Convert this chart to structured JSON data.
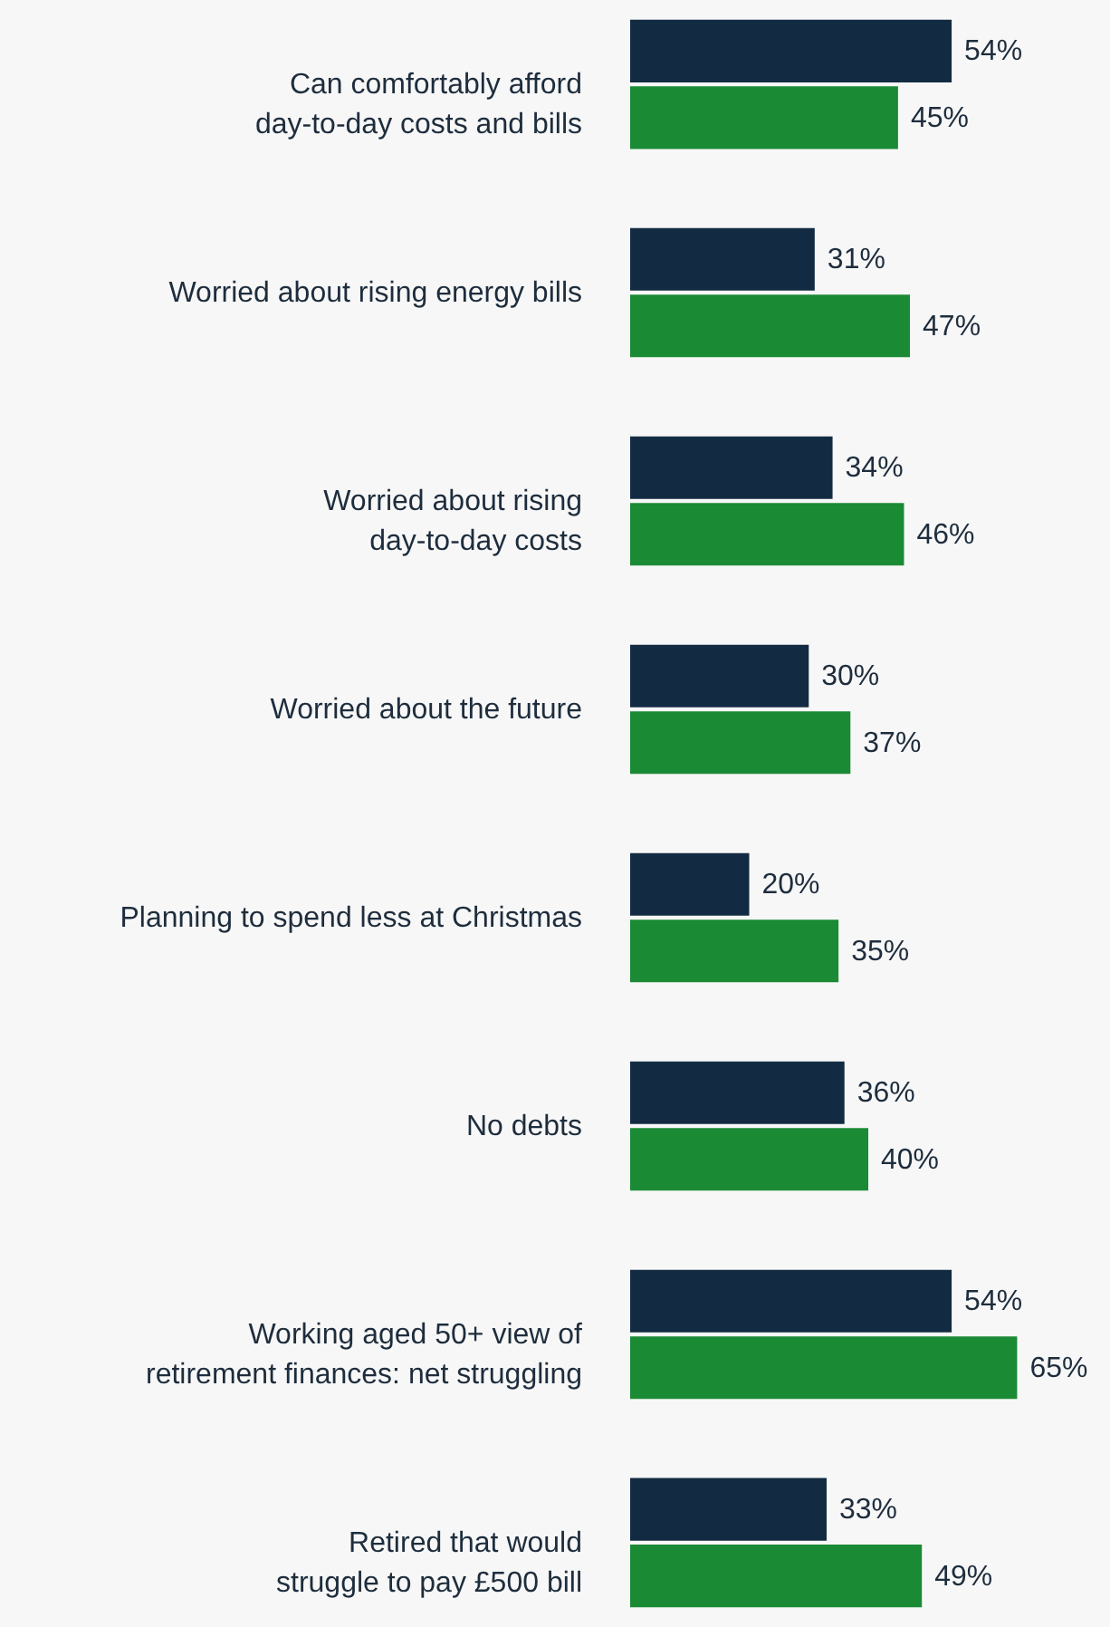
{
  "chart_data": {
    "type": "bar",
    "orientation": "horizontal",
    "grid": false,
    "categories": [
      "Can comfortably afford day-to-day costs and bills",
      "Worried about rising energy bills",
      "Worried about rising day-to-day costs",
      "Worried about the future",
      "Planning to spend less at Christmas",
      "No debts",
      "Working aged 50+ view of retirement finances: net struggling",
      "Retired that would struggle to pay £500 bill"
    ],
    "series": [
      {
        "color": "#132b42",
        "values": [
          54,
          31,
          34,
          30,
          20,
          36,
          54,
          33
        ],
        "value_labels": [
          "54%",
          "31%",
          "34%",
          "30%",
          "20%",
          "36%",
          "54%",
          "33%"
        ]
      },
      {
        "color": "#1b8a35",
        "values": [
          45,
          47,
          46,
          37,
          35,
          40,
          65,
          49
        ],
        "value_labels": [
          "45%",
          "47%",
          "46%",
          "37%",
          "35%",
          "40%",
          "65%",
          "49%"
        ]
      }
    ]
  }
}
